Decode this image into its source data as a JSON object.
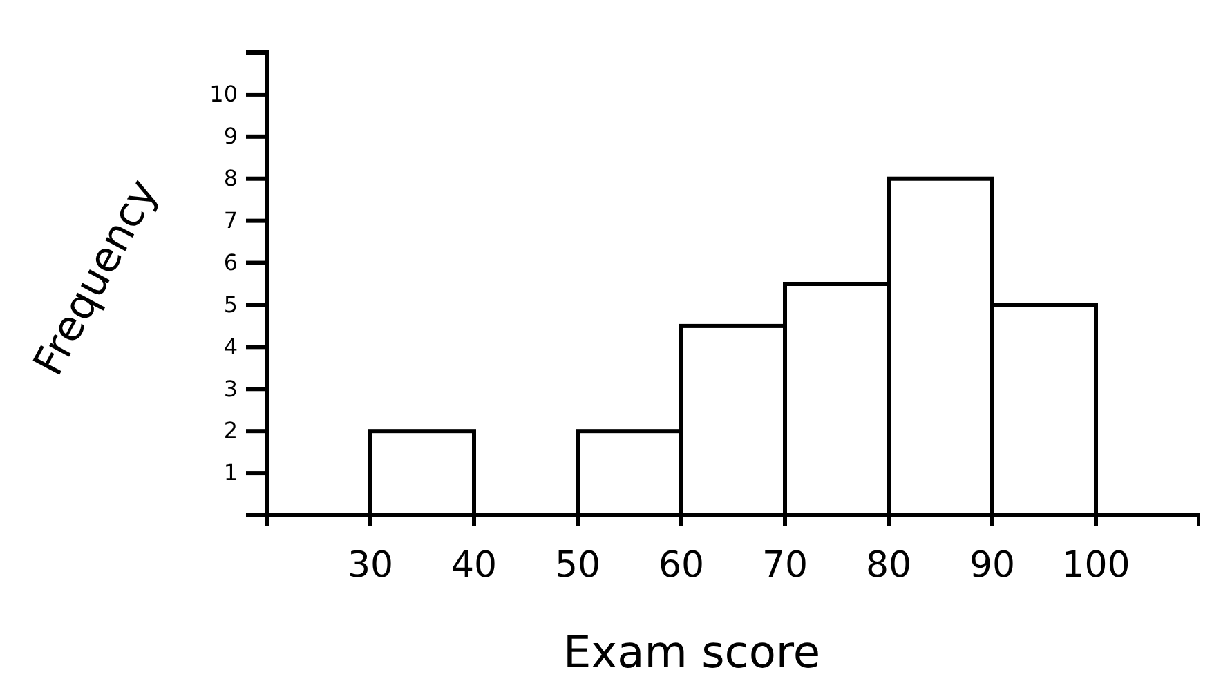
{
  "chart_data": {
    "type": "histogram",
    "xlabel": "Exam score",
    "ylabel": "Frequency",
    "bins": [
      30,
      40,
      50,
      60,
      70,
      80,
      90,
      100
    ],
    "values": [
      2,
      0,
      2,
      4.5,
      5.5,
      8,
      5
    ],
    "color": "#ffffff",
    "xlim": [
      20,
      110
    ],
    "ylim": [
      0,
      11
    ],
    "xticks": [
      30,
      40,
      50,
      60,
      70,
      80,
      90,
      100
    ],
    "yticks": [
      1,
      2,
      3,
      4,
      5,
      6,
      7,
      8,
      9,
      10
    ],
    "grid": false
  }
}
